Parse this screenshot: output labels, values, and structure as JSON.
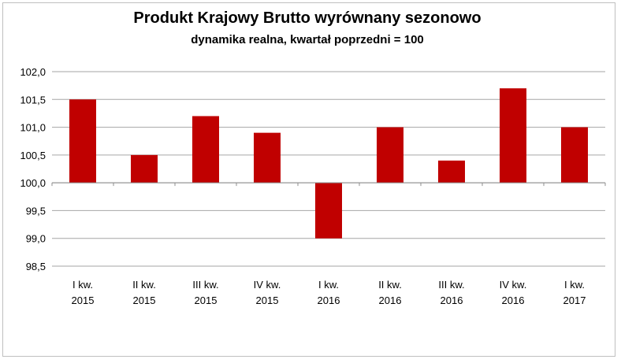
{
  "chart_data": {
    "type": "bar",
    "title": "Produkt Krajowy Brutto wyrównany sezonowo",
    "subtitle": "dynamika realna, kwartał poprzedni = 100",
    "categories": [
      [
        "I kw.",
        "2015"
      ],
      [
        "II kw.",
        "2015"
      ],
      [
        "III kw.",
        "2015"
      ],
      [
        "IV kw.",
        "2015"
      ],
      [
        "I kw.",
        "2016"
      ],
      [
        "II kw.",
        "2016"
      ],
      [
        "III kw.",
        "2016"
      ],
      [
        "IV kw.",
        "2016"
      ],
      [
        "I kw.",
        "2017"
      ]
    ],
    "values": [
      101.5,
      100.5,
      101.2,
      100.9,
      99.0,
      101.0,
      100.4,
      101.7,
      101.0
    ],
    "baseline": 100.0,
    "ylim": [
      98.5,
      102.0
    ],
    "yticks": [
      "102,0",
      "101,5",
      "101,0",
      "100,5",
      "100,0",
      "99,5",
      "99,0",
      "98,5"
    ],
    "ytick_values": [
      102.0,
      101.5,
      101.0,
      100.5,
      100.0,
      99.5,
      99.0,
      98.5
    ],
    "grid": true,
    "bar_color": "#c00000",
    "grid_color": "#a6a6a6"
  }
}
